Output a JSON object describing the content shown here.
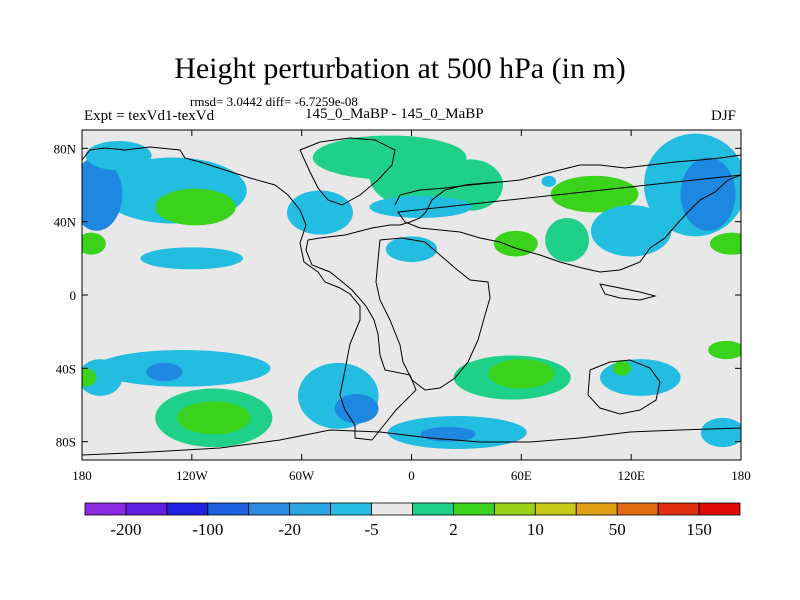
{
  "header": {
    "title": "Height perturbation at 500 hPa (in m)",
    "stats": "rmsd= 3.0442 diff= -6.7259e-08",
    "experiment": "Expt = texVd1-texVd",
    "subtitle": "145_0_MaBP - 145_0_MaBP",
    "season": "DJF"
  },
  "chart_data": {
    "type": "heatmap",
    "title": "Height perturbation at 500 hPa (in m)",
    "subtitle": "145_0_MaBP - 145_0_MaBP",
    "xlim": [
      -180,
      180
    ],
    "ylim": [
      -90,
      90
    ],
    "x_ticks": [
      {
        "value": -180,
        "label": "180"
      },
      {
        "value": -120,
        "label": "120W"
      },
      {
        "value": -60,
        "label": "60W"
      },
      {
        "value": 0,
        "label": "0"
      },
      {
        "value": 60,
        "label": "60E"
      },
      {
        "value": 120,
        "label": "120E"
      },
      {
        "value": 180,
        "label": "180"
      }
    ],
    "y_ticks": [
      {
        "value": 80,
        "label": "80N"
      },
      {
        "value": 40,
        "label": "40N"
      },
      {
        "value": 0,
        "label": "0"
      },
      {
        "value": -40,
        "label": "40S"
      },
      {
        "value": -80,
        "label": "80S"
      }
    ],
    "colorbar": {
      "colors": [
        "#8a2be2",
        "#6020e0",
        "#2020e0",
        "#1e5fe0",
        "#2e8ae0",
        "#2aa6e0",
        "#26bde0",
        "#e8e8e8",
        "#1ed08a",
        "#3ad21a",
        "#9ad21a",
        "#c8c81a",
        "#e0a014",
        "#e06a10",
        "#e03010",
        "#e00a0a"
      ],
      "labels": [
        {
          "boundary": 1,
          "text": "-200"
        },
        {
          "boundary": 3,
          "text": "-100"
        },
        {
          "boundary": 5,
          "text": "-20"
        },
        {
          "boundary": 7,
          "text": "-5"
        },
        {
          "boundary": 9,
          "text": "2"
        },
        {
          "boundary": 11,
          "text": "10"
        },
        {
          "boundary": 13,
          "text": "50"
        },
        {
          "boundary": 15,
          "text": "150"
        }
      ]
    },
    "regions": [
      {
        "class": "light_blue",
        "lon": -130,
        "lat": 57,
        "rlon": 40,
        "rlat": 18
      },
      {
        "class": "green",
        "lon": -118,
        "lat": 48,
        "rlon": 22,
        "rlat": 10
      },
      {
        "class": "blue",
        "lon": -172,
        "lat": 55,
        "rlon": 14,
        "rlat": 20
      },
      {
        "class": "light_blue",
        "lon": -160,
        "lat": 76,
        "rlon": 18,
        "rlat": 8
      },
      {
        "class": "light_blue",
        "lon": -120,
        "lat": 20,
        "rlon": 28,
        "rlat": 6
      },
      {
        "class": "light_blue",
        "lon": -50,
        "lat": 45,
        "rlon": 18,
        "rlat": 12
      },
      {
        "class": "green",
        "lon": -12,
        "lat": 75,
        "rlon": 42,
        "rlat": 12
      },
      {
        "class": "green",
        "lon": 5,
        "lat": 65,
        "rlon": 28,
        "rlat": 18
      },
      {
        "class": "green",
        "lon": 32,
        "lat": 60,
        "rlon": 18,
        "rlat": 14
      },
      {
        "class": "light_blue",
        "lon": 5,
        "lat": 48,
        "rlon": 28,
        "rlat": 6
      },
      {
        "class": "light_blue",
        "lon": 0,
        "lat": 25,
        "rlon": 14,
        "rlat": 7
      },
      {
        "class": "green",
        "lon": 100,
        "lat": 55,
        "rlon": 24,
        "rlat": 10
      },
      {
        "class": "green",
        "lon": 85,
        "lat": 30,
        "rlon": 12,
        "rlat": 12
      },
      {
        "class": "green",
        "lon": 57,
        "lat": 28,
        "rlon": 12,
        "rlat": 7
      },
      {
        "class": "light_blue",
        "lon": 120,
        "lat": 35,
        "rlon": 22,
        "rlat": 14
      },
      {
        "class": "light_blue",
        "lon": 155,
        "lat": 60,
        "rlon": 28,
        "rlat": 28
      },
      {
        "class": "blue",
        "lon": 162,
        "lat": 55,
        "rlon": 15,
        "rlat": 20
      },
      {
        "class": "light_blue",
        "lon": 75,
        "lat": 62,
        "rlon": 4,
        "rlat": 3
      },
      {
        "class": "green",
        "lon": 175,
        "lat": 28,
        "rlon": 12,
        "rlat": 6
      },
      {
        "class": "green",
        "lon": -175,
        "lat": 28,
        "rlon": 8,
        "rlat": 6
      },
      {
        "class": "light_blue",
        "lon": -125,
        "lat": -40,
        "rlon": 48,
        "rlat": 10
      },
      {
        "class": "blue",
        "lon": -135,
        "lat": -42,
        "rlon": 10,
        "rlat": 5
      },
      {
        "class": "light_blue",
        "lon": -170,
        "lat": -45,
        "rlon": 12,
        "rlat": 10
      },
      {
        "class": "green",
        "lon": -178,
        "lat": -45,
        "rlon": 6,
        "rlat": 5
      },
      {
        "class": "green",
        "lon": -108,
        "lat": -67,
        "rlon": 32,
        "rlat": 16
      },
      {
        "class": "green",
        "lon": -108,
        "lat": -67,
        "rlon": 20,
        "rlat": 9
      },
      {
        "class": "light_blue",
        "lon": -40,
        "lat": -55,
        "rlon": 22,
        "rlat": 18
      },
      {
        "class": "blue",
        "lon": -30,
        "lat": -62,
        "rlon": 12,
        "rlat": 8
      },
      {
        "class": "light_blue",
        "lon": 25,
        "lat": -75,
        "rlon": 38,
        "rlat": 9
      },
      {
        "class": "blue",
        "lon": 20,
        "lat": -76,
        "rlon": 15,
        "rlat": 4
      },
      {
        "class": "green",
        "lon": 55,
        "lat": -45,
        "rlon": 32,
        "rlat": 12
      },
      {
        "class": "green",
        "lon": 60,
        "lat": -43,
        "rlon": 18,
        "rlat": 8
      },
      {
        "class": "light_blue",
        "lon": 125,
        "lat": -45,
        "rlon": 22,
        "rlat": 10
      },
      {
        "class": "light_blue",
        "lon": 170,
        "lat": -75,
        "rlon": 12,
        "rlat": 8
      },
      {
        "class": "green",
        "lon": 172,
        "lat": -30,
        "rlon": 10,
        "rlat": 5
      },
      {
        "class": "green",
        "lon": 115,
        "lat": -40,
        "rlon": 5,
        "rlat": 4
      }
    ]
  }
}
